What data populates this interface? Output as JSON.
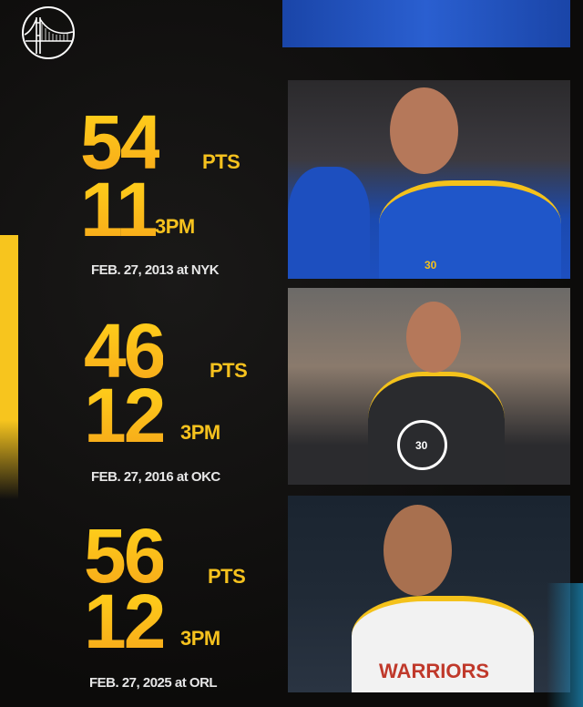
{
  "colors": {
    "accent": "#f7c51e",
    "background": "#0e0d0c",
    "blue": "#1d4fbf"
  },
  "logo": {
    "name": "warriors-bridge-logo"
  },
  "games": [
    {
      "points": "54",
      "points_unit": "PTS",
      "threes": "11",
      "threes_unit": "3PM",
      "date": "FEB. 27, 2013 at NYK",
      "photo": {
        "jersey_number": "30"
      }
    },
    {
      "points": "46",
      "points_unit": "PTS",
      "threes": "12",
      "threes_unit": "3PM",
      "date": "FEB. 27, 2016 at OKC",
      "photo": {
        "jersey_number": "30"
      }
    },
    {
      "points": "56",
      "points_unit": "PTS",
      "threes": "12",
      "threes_unit": "3PM",
      "date": "FEB. 27, 2025 at ORL",
      "photo": {
        "jersey_text": "WARRIORS"
      }
    }
  ]
}
